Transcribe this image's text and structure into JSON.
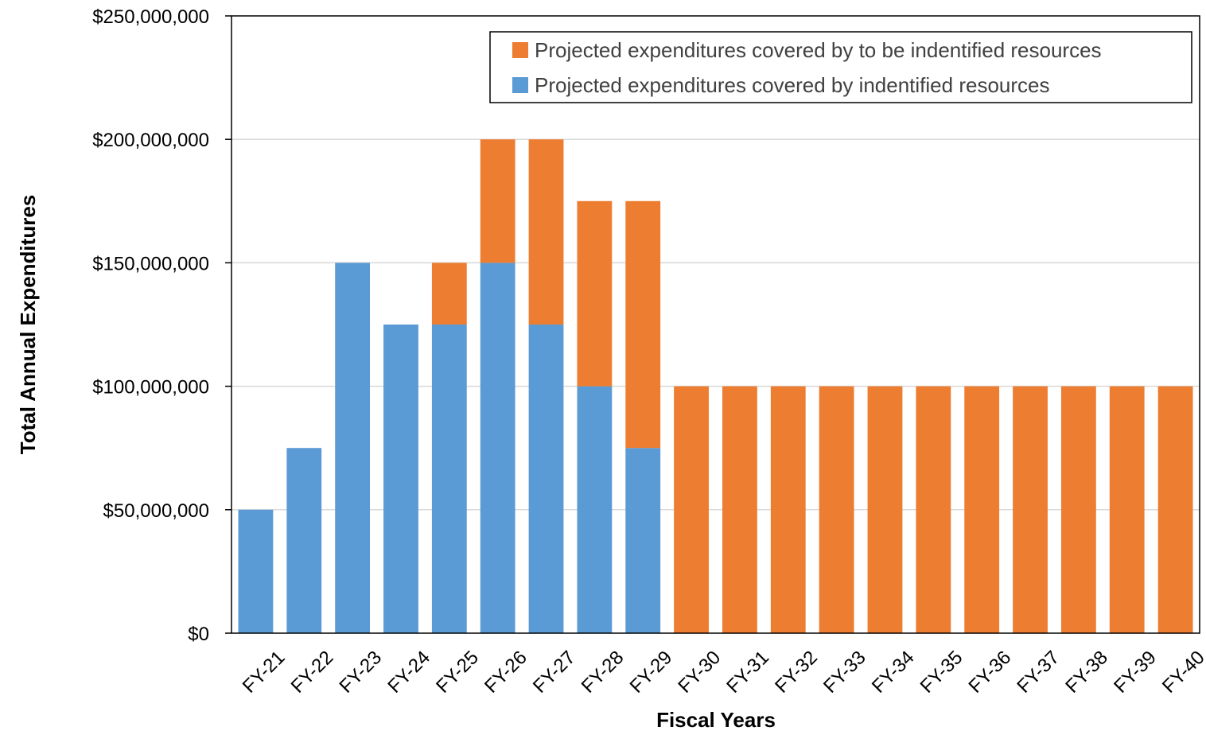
{
  "chart_data": {
    "type": "bar",
    "stacked": true,
    "categories": [
      "FY-21",
      "FY-22",
      "FY-23",
      "FY-24",
      "FY-25",
      "FY-26",
      "FY-27",
      "FY-28",
      "FY-29",
      "FY-30",
      "FY-31",
      "FY-32",
      "FY-33",
      "FY-34",
      "FY-35",
      "FY-36",
      "FY-37",
      "FY-38",
      "FY-39",
      "FY-40"
    ],
    "series": [
      {
        "name": "Projected expenditures covered by indentified resources",
        "color": "#5B9BD5",
        "values": [
          50000000,
          75000000,
          150000000,
          125000000,
          125000000,
          150000000,
          125000000,
          100000000,
          75000000,
          0,
          0,
          0,
          0,
          0,
          0,
          0,
          0,
          0,
          0,
          0
        ]
      },
      {
        "name": "Projected expenditures covered by to be indentified resources",
        "color": "#ED7D31",
        "values": [
          0,
          0,
          0,
          0,
          25000000,
          50000000,
          75000000,
          75000000,
          100000000,
          100000000,
          100000000,
          100000000,
          100000000,
          100000000,
          100000000,
          100000000,
          100000000,
          100000000,
          100000000,
          100000000
        ]
      }
    ],
    "legend_order": [
      1,
      0
    ],
    "xlabel": "Fiscal Years",
    "ylabel": "Total Annual Expenditures",
    "ylim": [
      0,
      250000000
    ],
    "yticks": [
      0,
      50000000,
      100000000,
      150000000,
      200000000,
      250000000
    ],
    "ytick_labels": [
      "$0",
      "$50,000,000",
      "$100,000,000",
      "$150,000,000",
      "$200,000,000",
      "$250,000,000"
    ],
    "grid": true,
    "legend_position": "top-right"
  }
}
